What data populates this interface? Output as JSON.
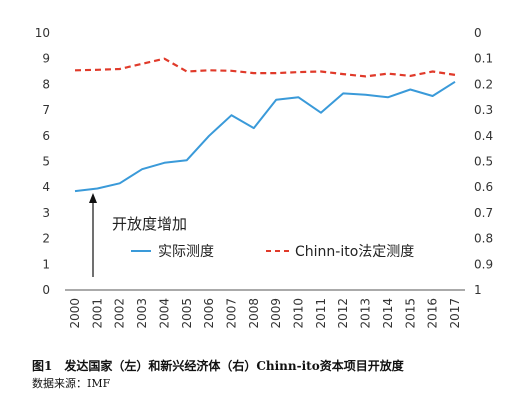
{
  "chart_data": {
    "type": "line",
    "categories": [
      "2000",
      "2001",
      "2002",
      "2003",
      "2004",
      "2005",
      "2006",
      "2007",
      "2008",
      "2009",
      "2010",
      "2011",
      "2012",
      "2013",
      "2014",
      "2015",
      "2016",
      "2017"
    ],
    "series": [
      {
        "name": "实际测度",
        "axis": "left",
        "style": "solid",
        "color": "#3a9ad9",
        "values": [
          3.85,
          3.95,
          4.15,
          4.7,
          4.95,
          5.05,
          6.0,
          6.8,
          6.3,
          7.4,
          7.5,
          6.9,
          7.65,
          7.6,
          7.5,
          7.8,
          7.55,
          8.1
        ]
      },
      {
        "name": "Chinn-ito法定测度",
        "axis": "right",
        "style": "dashed",
        "color": "#e03a2a",
        "values": [
          0.145,
          0.143,
          0.14,
          0.12,
          0.1,
          0.15,
          0.145,
          0.147,
          0.156,
          0.156,
          0.152,
          0.15,
          0.16,
          0.169,
          0.158,
          0.167,
          0.15,
          0.163
        ]
      }
    ],
    "y_left": {
      "min": 0,
      "max": 10,
      "ticks": [
        "0",
        "1",
        "2",
        "3",
        "4",
        "5",
        "6",
        "7",
        "8",
        "9",
        "10"
      ]
    },
    "y_right": {
      "min": 0,
      "max": 1,
      "inverted": true,
      "ticks": [
        "0",
        "0.1",
        "0.2",
        "0.3",
        "0.4",
        "0.5",
        "0.6",
        "0.7",
        "0.8",
        "0.9",
        "1"
      ]
    },
    "annotation": {
      "text": "开放度增加",
      "arrow": "up"
    },
    "grid": false,
    "legend_placement": "bottom-inside"
  },
  "caption": "图1　发达国家（左）和新兴经济体（右）Chinn-ito资本项目开放度",
  "source": "数据来源：IMF"
}
